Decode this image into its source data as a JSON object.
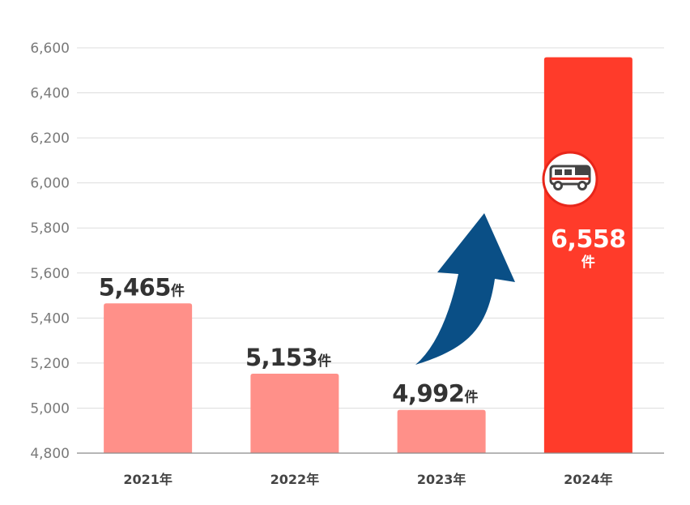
{
  "chart_data": {
    "type": "bar",
    "categories": [
      "2021年",
      "2022年",
      "2023年",
      "2024年"
    ],
    "values": [
      5465,
      5153,
      4992,
      6558
    ],
    "value_labels": [
      "5,465",
      "5,153",
      "4,992",
      "6,558"
    ],
    "unit": "件",
    "ylim": [
      4800,
      6600
    ],
    "yticks": [
      "4,800",
      "5,000",
      "5,200",
      "5,400",
      "5,600",
      "5,800",
      "6,000",
      "6,200",
      "6,400",
      "6,600"
    ],
    "grid": true,
    "highlight_index": 3,
    "bar_color": "#ff9089",
    "highlight_color": "#ff3b2a",
    "arrow_color": "#0a4f86",
    "highlight_icon": "ambulance-icon"
  }
}
